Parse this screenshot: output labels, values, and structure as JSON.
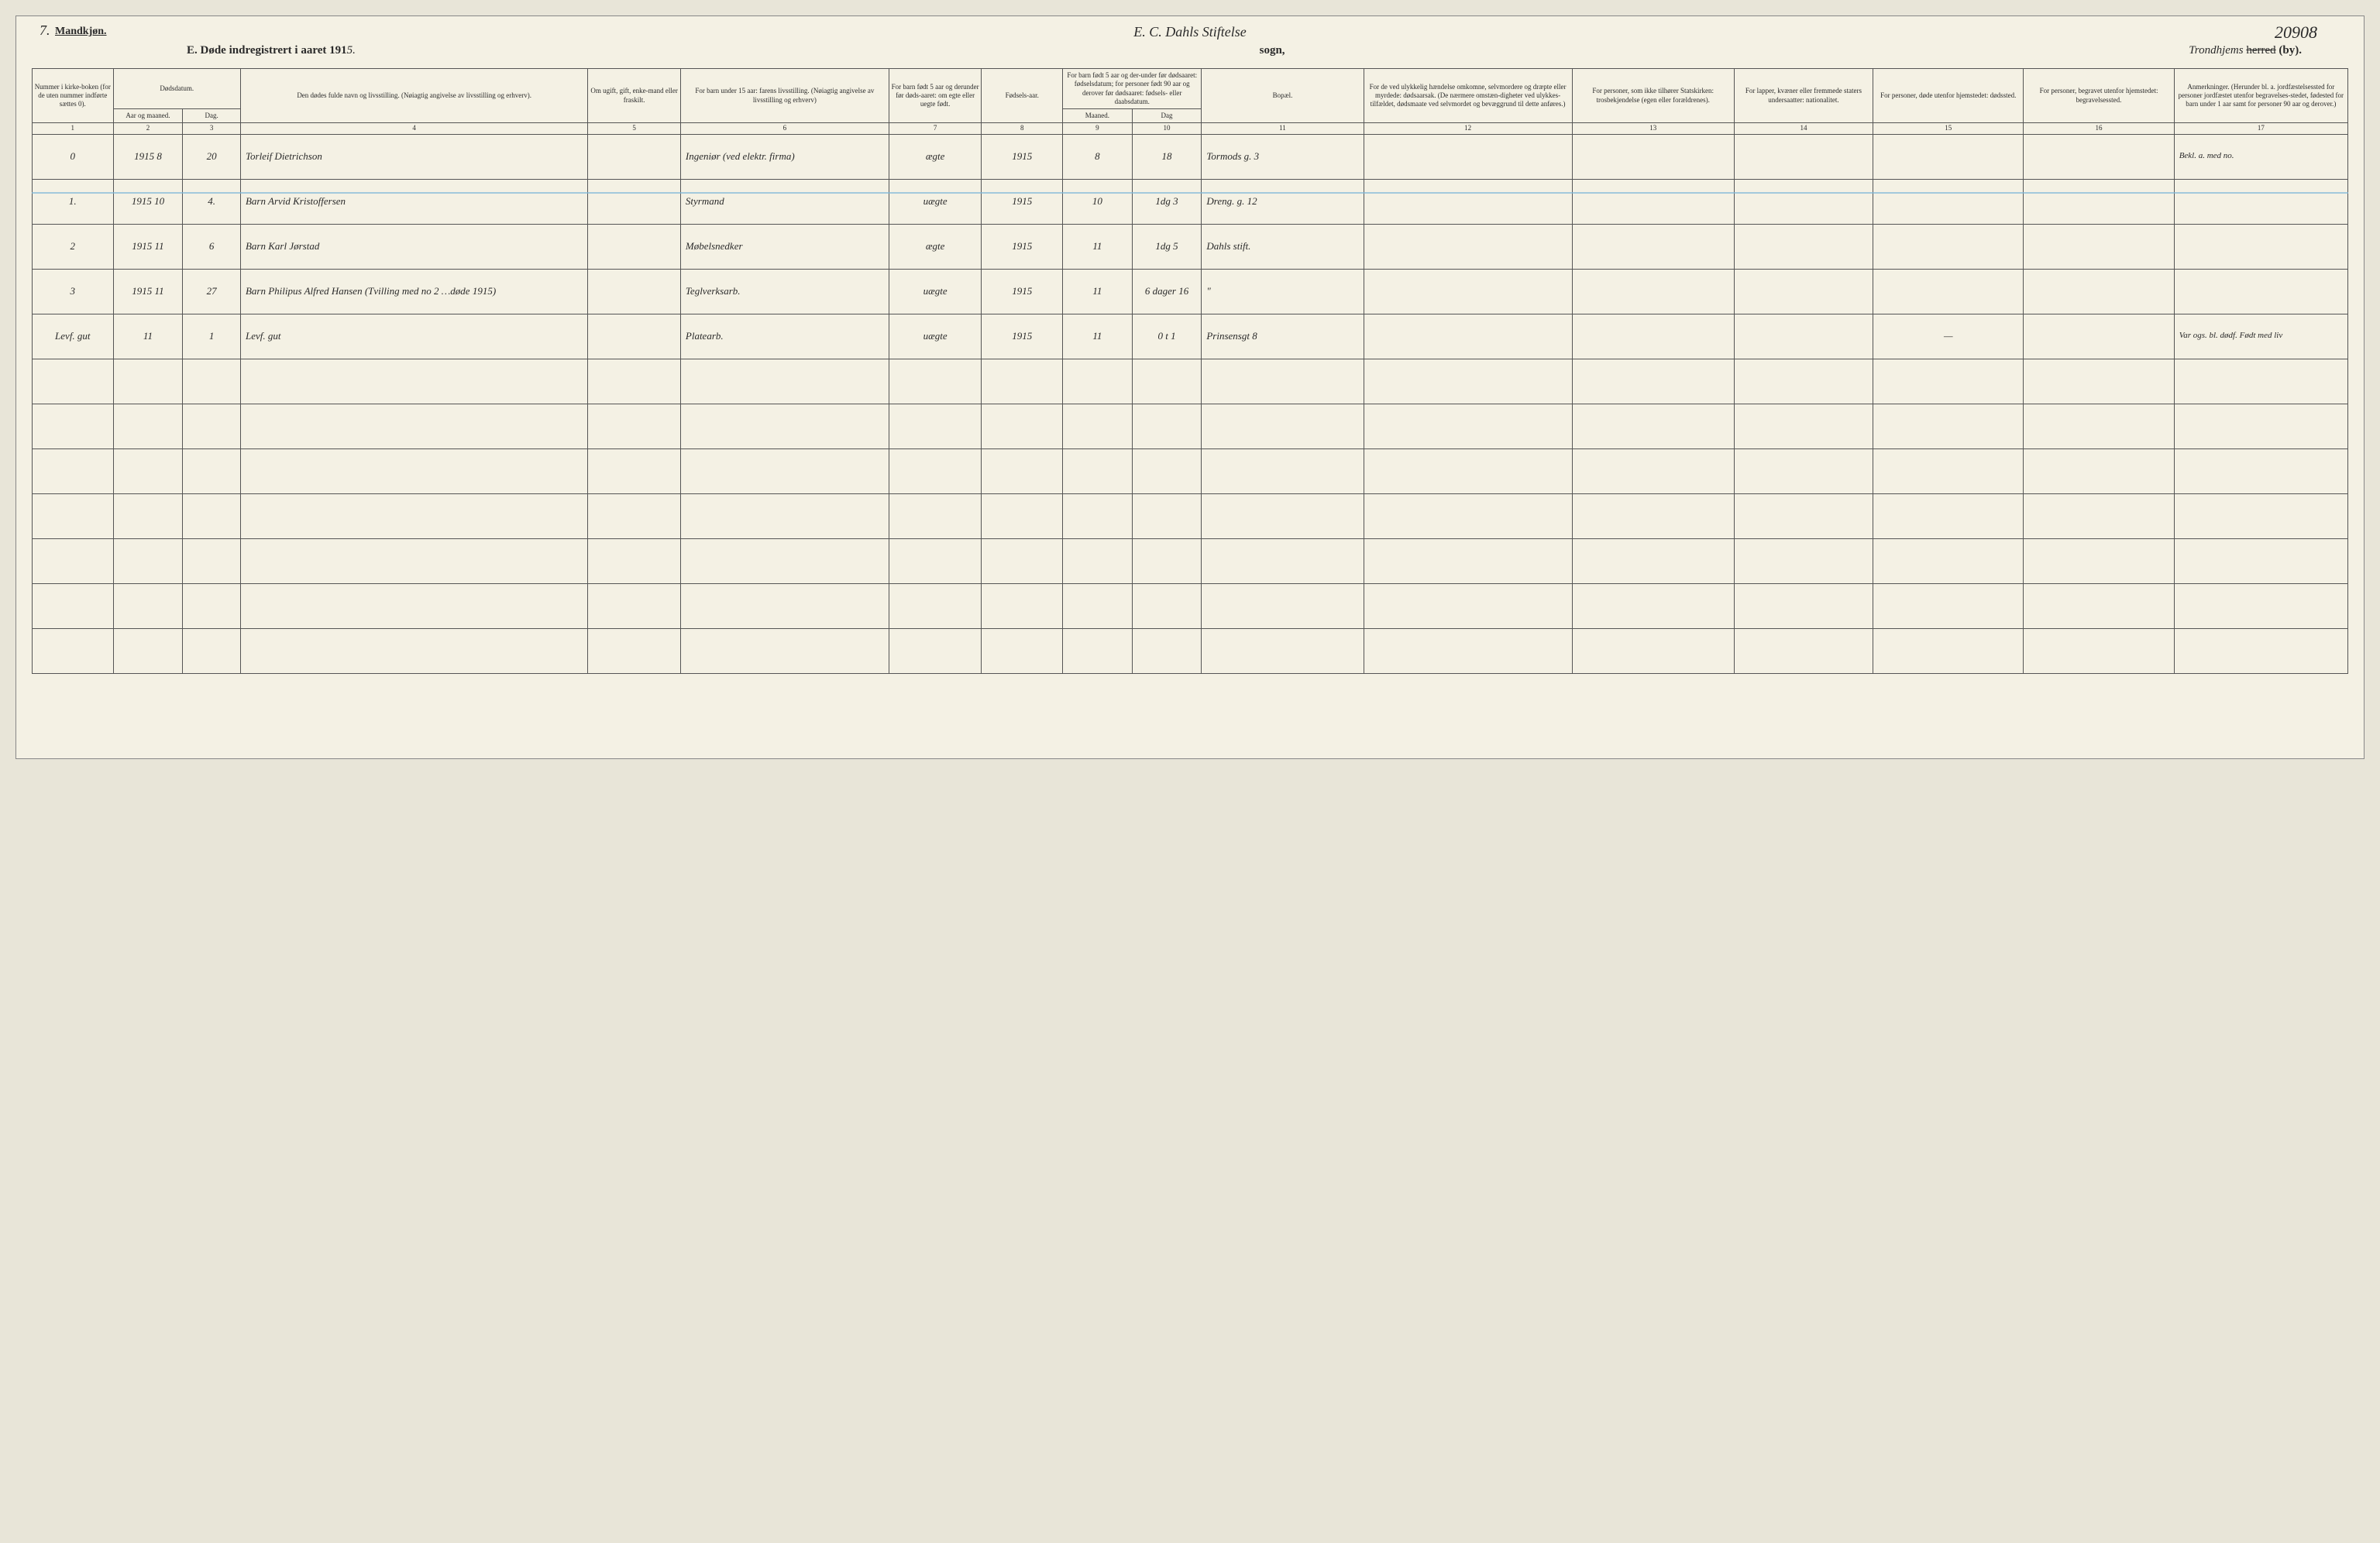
{
  "corner_left": "7.",
  "corner_right": "20908",
  "gender_label": "Mandkjøn.",
  "handwritten_top_center": "E. C. Dahls Stiftelse",
  "form_title_prefix": "E.  Døde indregistrert i aaret 191",
  "form_title_year_suffix": "5.",
  "sogn_label": "sogn,",
  "herred_script": "Trondhjems",
  "herred_label_struck": "herred",
  "herred_label_by": "(by).",
  "colors": {
    "paper": "#f4f1e4",
    "ink": "#2a2a2a",
    "rule": "#555555",
    "blue_pencil": "#7fb8d8"
  },
  "headers": {
    "c1": "Nummer i kirke-boken (for de uten nummer indførte sættes 0).",
    "c2_group": "Dødsdatum.",
    "c2a": "Aar og maaned.",
    "c2b": "Dag.",
    "c4": "Den dødes fulde navn og livsstilling. (Nøiagtig angivelse av livsstilling og erhverv).",
    "c5": "Om ugift, gift, enke-mand eller fraskilt.",
    "c6": "For barn under 15 aar: farens livsstilling. (Nøiagtig angivelse av livsstilling og erhverv)",
    "c7": "For barn født 5 aar og derunder før døds-aaret: om egte eller uegte født.",
    "c8": "Fødsels-aar.",
    "c9_group": "For barn født 5 aar og der-under før dødsaaret: fødselsdatum; for personer født 90 aar og derover før dødsaaret: fødsels- eller daabsdatum.",
    "c9a": "Maaned.",
    "c9b": "Dag",
    "c11": "Bopæl.",
    "c12": "For de ved ulykkelig hændelse omkomne, selvmordere og dræpte eller myrdede: dødsaarsak. (De nærmere omstæn-digheter ved ulykkes-tilfældet, dødsmaate ved selvmordet og bevæggrund til dette anføres.)",
    "c13": "For personer, som ikke tilhører Statskirken: trosbekjendelse (egen eller forældrenes).",
    "c14": "For lapper, kvæner eller fremmede staters undersaatter: nationalitet.",
    "c15": "For personer, døde utenfor hjemstedet: dødssted.",
    "c16": "For personer, begravet utenfor hjemstedet: begravelsessted.",
    "c17": "Anmerkninger. (Herunder bl. a. jordfæstelsessted for personer jordfæstet utenfor begravelses-stedet, fødested for barn under 1 aar samt for personer 90 aar og derover.)"
  },
  "colnums": [
    "1",
    "2",
    "3",
    "4",
    "5",
    "6",
    "7",
    "8",
    "9",
    "10",
    "11",
    "12",
    "13",
    "14",
    "15",
    "16",
    "17"
  ],
  "rows": [
    {
      "num": "0",
      "aar": "1915  8",
      "dag": "20",
      "navn": "Torleif Dietrichson",
      "ugift": "",
      "faren": "Ingeniør (ved elektr. firma)",
      "egte": "ægte",
      "faar": "1915",
      "m": "8",
      "d": "18",
      "bopael": "Tormods g. 3",
      "c12": "",
      "c13": "",
      "c14": "",
      "c15": "",
      "c16": "",
      "anm": "Bekl. a. med no."
    },
    {
      "num": "1.",
      "aar": "1915  10",
      "dag": "4.",
      "navn": "Barn Arvid Kristoffersen",
      "ugift": "",
      "faren": "Styrmand",
      "egte": "uægte",
      "faar": "1915",
      "m": "10",
      "d": "1dg 3",
      "bopael": "Dreng. g. 12",
      "c12": "",
      "c13": "",
      "c14": "",
      "c15": "",
      "c16": "",
      "anm": ""
    },
    {
      "num": "2",
      "aar": "1915  11",
      "dag": "6",
      "navn": "Barn Karl Jørstad",
      "ugift": "",
      "faren": "Møbelsnedker",
      "egte": "ægte",
      "faar": "1915",
      "m": "11",
      "d": "1dg 5",
      "bopael": "Dahls stift.",
      "c12": "",
      "c13": "",
      "c14": "",
      "c15": "",
      "c16": "",
      "anm": ""
    },
    {
      "num": "3",
      "aar": "1915  11",
      "dag": "27",
      "navn": "Barn Philipus Alfred Hansen (Tvilling med no 2 …døde 1915)",
      "ugift": "",
      "faren": "Teglverksarb.",
      "egte": "uægte",
      "faar": "1915",
      "m": "11",
      "d": "6 dager 16",
      "bopael": "\"",
      "c12": "",
      "c13": "",
      "c14": "",
      "c15": "",
      "c16": "",
      "anm": ""
    },
    {
      "num": "Levf. gut",
      "aar": "11",
      "dag": "1",
      "navn": "Levf. gut",
      "ugift": "",
      "faren": "Platearb.",
      "egte": "uægte",
      "faar": "1915",
      "m": "11",
      "d": "0 t 1",
      "bopael": "Prinsensgt 8",
      "c12": "",
      "c13": "",
      "c14": "",
      "c15": "—",
      "c16": "",
      "anm": "Var ogs. bl. dødf. Født med liv"
    }
  ],
  "empty_row_count": 7
}
